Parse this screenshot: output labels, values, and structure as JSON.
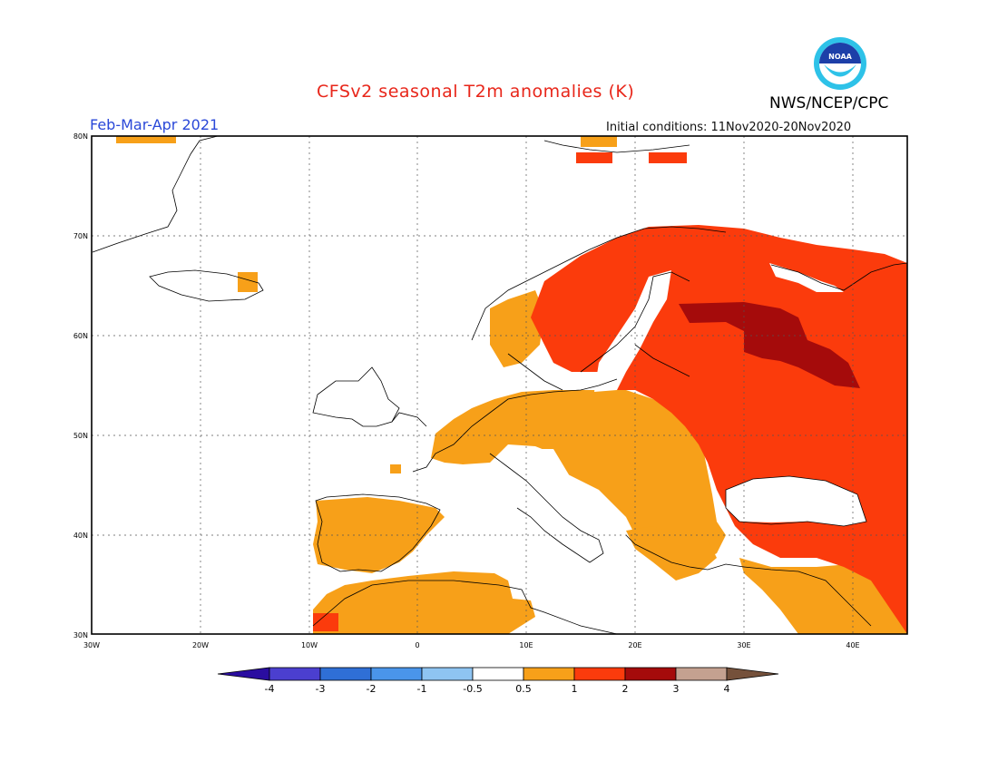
{
  "header": {
    "title": "CFSv2 seasonal T2m anomalies (K)",
    "agency": "NWS/NCEP/CPC",
    "period": "Feb-Mar-Apr 2021",
    "initial_conditions": "Initial conditions: 11Nov2020-20Nov2020",
    "logo_text": "NOAA"
  },
  "map": {
    "projection": "lat-lon",
    "lon_range": [
      -30,
      45
    ],
    "lat_range": [
      30,
      80
    ],
    "lon_ticks": [
      "30W",
      "20W",
      "10W",
      "0",
      "10E",
      "20E",
      "30E",
      "40E"
    ],
    "lat_ticks": [
      "30N",
      "40N",
      "50N",
      "60N",
      "70N",
      "80N"
    ],
    "grid": "dotted"
  },
  "colorbar": {
    "tick_labels": [
      "-4",
      "-3",
      "-2",
      "-1",
      "-0.5",
      "0.5",
      "1",
      "2",
      "3",
      "4"
    ],
    "colors": [
      "#2a0da0",
      "#4b3fcf",
      "#2f6fd6",
      "#4a95ea",
      "#8ec4f2",
      "#ffffff",
      "#f7a019",
      "#fb3b0c",
      "#a50b0b",
      "#c4a190",
      "#75513b"
    ]
  }
}
